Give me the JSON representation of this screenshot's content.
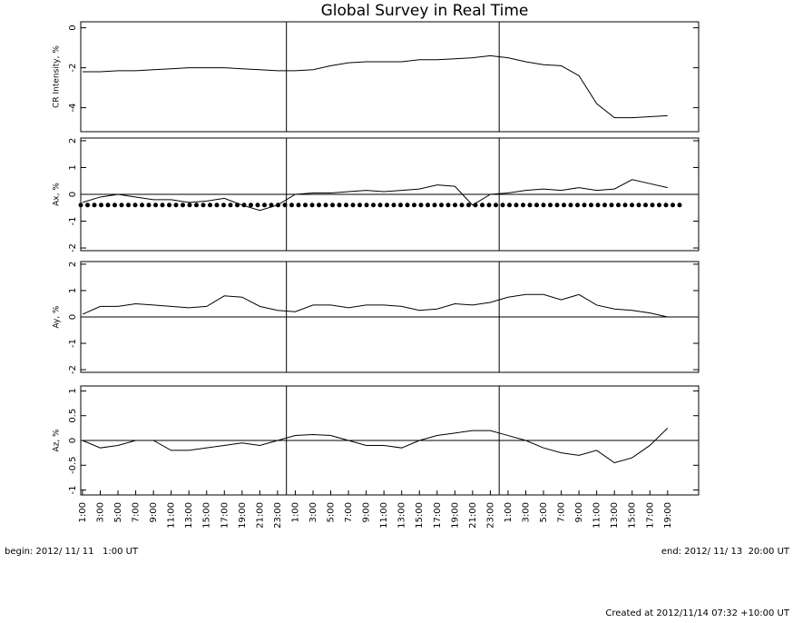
{
  "chart_data": [
    {
      "type": "line",
      "title": "Global Survey in Real Time",
      "y_label": "CR Intensity, %",
      "x": [
        0,
        2,
        4,
        6,
        8,
        10,
        12,
        14,
        16,
        18,
        20,
        22,
        24,
        26,
        28,
        30,
        32,
        34,
        36,
        38,
        40,
        42,
        44,
        46,
        48,
        50,
        52,
        54,
        56,
        58,
        60,
        62,
        64,
        66
      ],
      "series": [
        {
          "color": "#000000",
          "values": [
            -2.2,
            -2.2,
            -2.15,
            -2.15,
            -2.1,
            -2.05,
            -2.0,
            -2.0,
            -2.0,
            -2.05,
            -2.1,
            -2.15,
            -2.15,
            -2.1,
            -1.9,
            -1.75,
            -1.7,
            -1.7,
            -1.7,
            -1.6,
            -1.6,
            -1.55,
            -1.5,
            -1.4,
            -1.5,
            -1.7,
            -1.85,
            -1.9,
            -2.4,
            -3.8,
            -4.5,
            -4.5,
            -4.45,
            -4.4
          ]
        }
      ],
      "xlim": [
        -0.2,
        69.5
      ],
      "ylim": [
        -5.2,
        0.3
      ],
      "yticks": [
        0,
        -2,
        -4
      ],
      "day_lines": [
        23,
        47
      ]
    },
    {
      "type": "line",
      "y_label": "Ax, %",
      "x": [
        0,
        2,
        4,
        6,
        8,
        10,
        12,
        14,
        16,
        18,
        20,
        22,
        24,
        26,
        28,
        30,
        32,
        34,
        36,
        38,
        40,
        42,
        44,
        46,
        48,
        50,
        52,
        54,
        56,
        58,
        60,
        62,
        64,
        66
      ],
      "series": [
        {
          "color": "#000000",
          "values": [
            -0.3,
            -0.1,
            0,
            -0.1,
            -0.2,
            -0.2,
            -0.3,
            -0.25,
            -0.15,
            -0.4,
            -0.6,
            -0.4,
            0,
            0.05,
            0.05,
            0.1,
            0.15,
            0.1,
            0.15,
            0.2,
            0.35,
            0.3,
            -0.4,
            0,
            0.05,
            0.15,
            0.2,
            0.15,
            0.25,
            0.15,
            0.2,
            0.55,
            0.4,
            0.25
          ]
        }
      ],
      "reference_level": -0.4,
      "zero_line": true,
      "xlim": [
        -0.2,
        69.5
      ],
      "ylim": [
        -2.1,
        2.1
      ],
      "yticks": [
        -2,
        -1,
        0,
        1,
        2
      ],
      "day_lines": [
        23,
        47
      ]
    },
    {
      "type": "line",
      "y_label": "Ay, %",
      "x": [
        0,
        2,
        4,
        6,
        8,
        10,
        12,
        14,
        16,
        18,
        20,
        22,
        24,
        26,
        28,
        30,
        32,
        34,
        36,
        38,
        40,
        42,
        44,
        46,
        48,
        50,
        52,
        54,
        56,
        58,
        60,
        62,
        64,
        66
      ],
      "series": [
        {
          "color": "#000000",
          "values": [
            0.1,
            0.4,
            0.4,
            0.5,
            0.45,
            0.4,
            0.35,
            0.4,
            0.8,
            0.75,
            0.4,
            0.25,
            0.2,
            0.45,
            0.45,
            0.35,
            0.45,
            0.45,
            0.4,
            0.25,
            0.3,
            0.5,
            0.45,
            0.55,
            0.75,
            0.85,
            0.85,
            0.65,
            0.85,
            0.45,
            0.3,
            0.25,
            0.15,
            0
          ]
        }
      ],
      "zero_line": true,
      "xlim": [
        -0.2,
        69.5
      ],
      "ylim": [
        -2.1,
        2.1
      ],
      "yticks": [
        -2,
        -1,
        0,
        1,
        2
      ],
      "day_lines": [
        23,
        47
      ]
    },
    {
      "type": "line",
      "y_label": "Az, %",
      "x": [
        0,
        2,
        4,
        6,
        8,
        10,
        12,
        14,
        16,
        18,
        20,
        22,
        24,
        26,
        28,
        30,
        32,
        34,
        36,
        38,
        40,
        42,
        44,
        46,
        48,
        50,
        52,
        54,
        56,
        58,
        60,
        62,
        64,
        66
      ],
      "series": [
        {
          "color": "#000000",
          "values": [
            0,
            -0.15,
            -0.1,
            0,
            0,
            -0.2,
            -0.2,
            -0.15,
            -0.1,
            -0.05,
            -0.1,
            0,
            0.1,
            0.12,
            0.1,
            0,
            -0.1,
            -0.1,
            -0.15,
            0,
            0.1,
            0.15,
            0.2,
            0.2,
            0.1,
            0,
            -0.15,
            -0.25,
            -0.3,
            -0.2,
            -0.45,
            -0.35,
            -0.1,
            0.25
          ]
        }
      ],
      "zero_line": true,
      "xlim": [
        -0.2,
        69.5
      ],
      "ylim": [
        -1.1,
        1.1
      ],
      "yticks": [
        -1,
        -0.5,
        0,
        0.5,
        1
      ],
      "day_lines": [
        23,
        47
      ],
      "xticks": [
        {
          "value": 0,
          "label": "1:00"
        },
        {
          "value": 2,
          "label": "3:00"
        },
        {
          "value": 4,
          "label": "5:00"
        },
        {
          "value": 6,
          "label": "7:00"
        },
        {
          "value": 8,
          "label": "9:00"
        },
        {
          "value": 10,
          "label": "11:00"
        },
        {
          "value": 12,
          "label": "13:00"
        },
        {
          "value": 14,
          "label": "15:00"
        },
        {
          "value": 16,
          "label": "17:00"
        },
        {
          "value": 18,
          "label": "19:00"
        },
        {
          "value": 20,
          "label": "21:00"
        },
        {
          "value": 22,
          "label": "23:00"
        },
        {
          "value": 24,
          "label": "1:00"
        },
        {
          "value": 26,
          "label": "3:00"
        },
        {
          "value": 28,
          "label": "5:00"
        },
        {
          "value": 30,
          "label": "7:00"
        },
        {
          "value": 32,
          "label": "9:00"
        },
        {
          "value": 34,
          "label": "11:00"
        },
        {
          "value": 36,
          "label": "13:00"
        },
        {
          "value": 38,
          "label": "15:00"
        },
        {
          "value": 40,
          "label": "17:00"
        },
        {
          "value": 42,
          "label": "19:00"
        },
        {
          "value": 44,
          "label": "21:00"
        },
        {
          "value": 46,
          "label": "23:00"
        },
        {
          "value": 48,
          "label": "1:00"
        },
        {
          "value": 50,
          "label": "3:00"
        },
        {
          "value": 52,
          "label": "5:00"
        },
        {
          "value": 54,
          "label": "7:00"
        },
        {
          "value": 56,
          "label": "9:00"
        },
        {
          "value": 58,
          "label": "11:00"
        },
        {
          "value": 60,
          "label": "13:00"
        },
        {
          "value": 62,
          "label": "15:00"
        },
        {
          "value": 64,
          "label": "17:00"
        },
        {
          "value": 66,
          "label": "19:00"
        }
      ]
    }
  ],
  "footer": {
    "begin": "begin: 2012/ 11/ 11   1:00 UT",
    "end": "end: 2012/ 11/ 13  20:00 UT",
    "created": "Created at 2012/11/14 07:32 +10:00 UT"
  }
}
